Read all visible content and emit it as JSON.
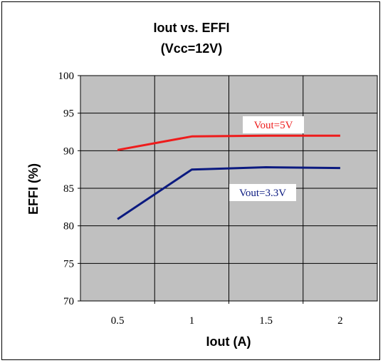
{
  "chart_data": {
    "type": "line",
    "title_line1": "Iout  vs. EFFI",
    "title_line2": "(Vcc=12V)",
    "xlabel": "Iout (A)",
    "ylabel": "EFFI (%)",
    "x_ticks": [
      "0.5",
      "1",
      "1.5",
      "2"
    ],
    "y_ticks": [
      "70",
      "75",
      "80",
      "85",
      "90",
      "95",
      "100"
    ],
    "xlim": [
      0.25,
      2.25
    ],
    "ylim": [
      70,
      100
    ],
    "grid": true,
    "x": [
      0.5,
      1,
      1.5,
      2
    ],
    "series": [
      {
        "name": "Vout=5V",
        "color": "#ee1c1c",
        "values": [
          90.1,
          91.9,
          92.0,
          92.0
        ]
      },
      {
        "name": "Vout=3.3V",
        "color": "#0b1a80",
        "values": [
          80.9,
          87.5,
          87.8,
          87.7
        ]
      }
    ],
    "plot_background": "#c0c0c0"
  }
}
